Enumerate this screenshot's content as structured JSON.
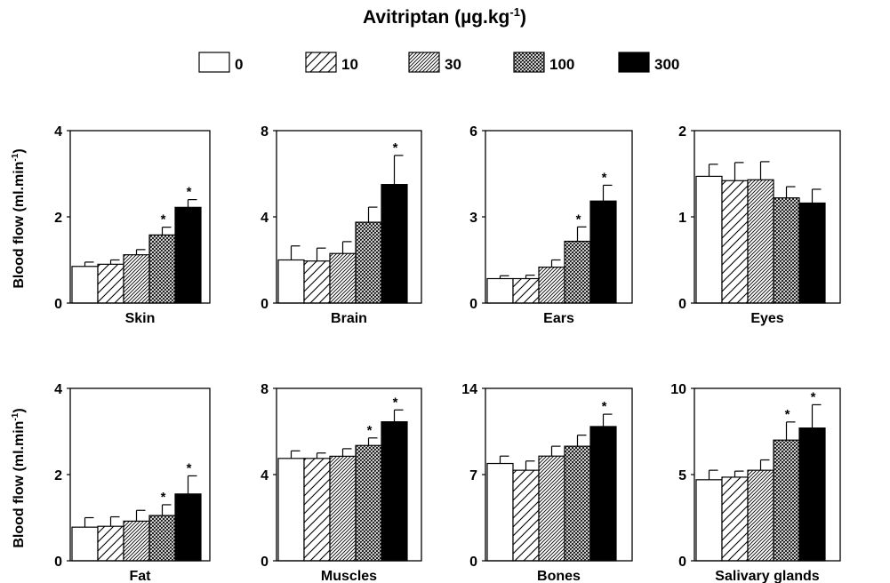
{
  "title": "Avitriptan (µg.kg",
  "title_superscript": "-1",
  "title_suffix": ")",
  "ylabel": "Blood flow (ml.min",
  "ylabel_superscript": "-1",
  "ylabel_suffix": ")",
  "significance_marker": "*",
  "legend": [
    {
      "label": "0",
      "pattern": "white"
    },
    {
      "label": "10",
      "pattern": "hatch-sparse"
    },
    {
      "label": "30",
      "pattern": "hatch-dense"
    },
    {
      "label": "100",
      "pattern": "crosshatch"
    },
    {
      "label": "300",
      "pattern": "black"
    }
  ],
  "chart_data": [
    {
      "type": "bar",
      "xlabel": "Skin",
      "ylim": [
        0,
        4
      ],
      "yticks": [
        "0",
        "2",
        "4"
      ],
      "categories": [
        "0",
        "10",
        "30",
        "100",
        "300"
      ],
      "values": [
        0.85,
        0.9,
        1.12,
        1.58,
        2.22
      ],
      "errors": [
        0.1,
        0.1,
        0.12,
        0.18,
        0.18
      ],
      "significant": [
        false,
        false,
        false,
        true,
        true
      ]
    },
    {
      "type": "bar",
      "xlabel": "Brain",
      "ylim": [
        0,
        8
      ],
      "yticks": [
        "0",
        "4",
        "8"
      ],
      "categories": [
        "0",
        "10",
        "30",
        "100",
        "300"
      ],
      "values": [
        2.0,
        1.95,
        2.3,
        3.75,
        5.5
      ],
      "errors": [
        0.65,
        0.6,
        0.55,
        0.7,
        1.35
      ],
      "significant": [
        false,
        false,
        false,
        false,
        true
      ]
    },
    {
      "type": "bar",
      "xlabel": "Ears",
      "ylim": [
        0,
        6
      ],
      "yticks": [
        "0",
        "3",
        "6"
      ],
      "categories": [
        "0",
        "10",
        "30",
        "100",
        "300"
      ],
      "values": [
        0.85,
        0.85,
        1.25,
        2.15,
        3.55
      ],
      "errors": [
        0.1,
        0.12,
        0.25,
        0.5,
        0.55
      ],
      "significant": [
        false,
        false,
        false,
        true,
        true
      ]
    },
    {
      "type": "bar",
      "xlabel": "Eyes",
      "ylim": [
        0,
        2
      ],
      "yticks": [
        "0",
        "1",
        "2"
      ],
      "categories": [
        "0",
        "10",
        "30",
        "100",
        "300"
      ],
      "values": [
        1.47,
        1.42,
        1.43,
        1.22,
        1.16
      ],
      "errors": [
        0.14,
        0.21,
        0.21,
        0.13,
        0.16
      ],
      "significant": [
        false,
        false,
        false,
        false,
        false
      ]
    },
    {
      "type": "bar",
      "xlabel": "Fat",
      "ylim": [
        0,
        4
      ],
      "yticks": [
        "0",
        "2",
        "4"
      ],
      "categories": [
        "0",
        "10",
        "30",
        "100",
        "300"
      ],
      "values": [
        0.78,
        0.8,
        0.92,
        1.05,
        1.55
      ],
      "errors": [
        0.22,
        0.22,
        0.25,
        0.25,
        0.42
      ],
      "significant": [
        false,
        false,
        false,
        true,
        true
      ]
    },
    {
      "type": "bar",
      "xlabel": "Muscles",
      "ylim": [
        0,
        8
      ],
      "yticks": [
        "0",
        "4",
        "8"
      ],
      "categories": [
        "0",
        "10",
        "30",
        "100",
        "300"
      ],
      "values": [
        4.75,
        4.75,
        4.85,
        5.35,
        6.45
      ],
      "errors": [
        0.35,
        0.25,
        0.35,
        0.35,
        0.55
      ],
      "significant": [
        false,
        false,
        false,
        true,
        true
      ]
    },
    {
      "type": "bar",
      "xlabel": "Bones",
      "ylim": [
        0,
        14
      ],
      "yticks": [
        "0",
        "7",
        "14"
      ],
      "categories": [
        "0",
        "10",
        "30",
        "100",
        "300"
      ],
      "values": [
        7.9,
        7.35,
        8.5,
        9.3,
        10.9
      ],
      "errors": [
        0.6,
        0.75,
        0.8,
        0.9,
        1.0
      ],
      "significant": [
        false,
        false,
        false,
        false,
        true
      ]
    },
    {
      "type": "bar",
      "xlabel": "Salivary glands",
      "ylim": [
        0,
        10
      ],
      "yticks": [
        "0",
        "5",
        "10"
      ],
      "categories": [
        "0",
        "10",
        "30",
        "100",
        "300"
      ],
      "values": [
        4.7,
        4.85,
        5.25,
        7.0,
        7.7
      ],
      "errors": [
        0.55,
        0.35,
        0.6,
        1.05,
        1.35
      ],
      "significant": [
        false,
        false,
        false,
        true,
        true
      ]
    }
  ]
}
